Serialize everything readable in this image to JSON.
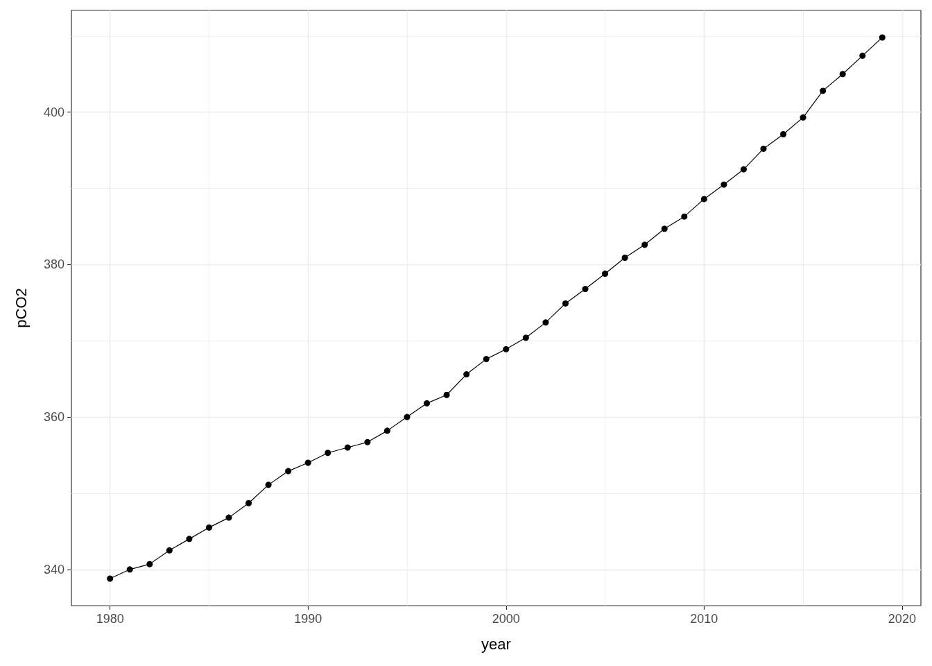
{
  "chart_data": {
    "type": "line",
    "xlabel": "year",
    "ylabel": "pCO2",
    "x": [
      1980,
      1981,
      1982,
      1983,
      1984,
      1985,
      1986,
      1987,
      1988,
      1989,
      1990,
      1991,
      1992,
      1993,
      1994,
      1995,
      1996,
      1997,
      1998,
      1999,
      2000,
      2001,
      2002,
      2003,
      2004,
      2005,
      2006,
      2007,
      2008,
      2009,
      2010,
      2011,
      2012,
      2013,
      2014,
      2015,
      2016,
      2017,
      2018,
      2019
    ],
    "values": [
      338.8,
      340.0,
      340.7,
      342.5,
      344.0,
      345.5,
      346.8,
      348.7,
      351.1,
      352.9,
      354.0,
      355.3,
      356.0,
      356.7,
      358.2,
      360.0,
      361.8,
      362.9,
      365.6,
      367.6,
      368.9,
      370.4,
      372.4,
      374.9,
      376.8,
      378.8,
      380.9,
      382.6,
      384.7,
      386.3,
      388.6,
      390.5,
      392.5,
      395.2,
      397.1,
      399.3,
      402.8,
      405.0,
      407.4,
      409.8
    ],
    "color": "#000000",
    "marker": "circle",
    "line_style": "solid",
    "xlim": [
      1978.05,
      2020.95
    ],
    "ylim": [
      335.25,
      413.35
    ],
    "xticks": [
      1980,
      1990,
      2000,
      2010,
      2020
    ],
    "yticks": [
      340,
      360,
      380,
      400
    ],
    "grid": true
  }
}
